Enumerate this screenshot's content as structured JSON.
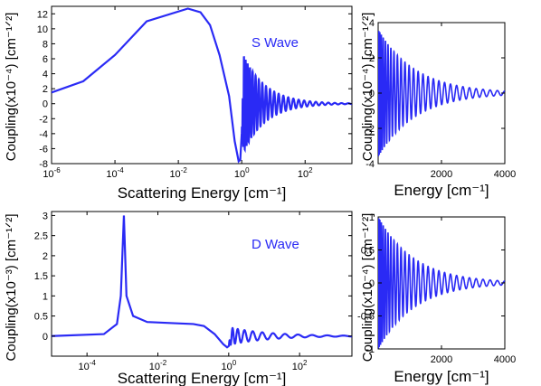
{
  "colors": {
    "series": "#2a2af5",
    "axis": "#000000",
    "background": "#ffffff"
  },
  "chart_data": [
    {
      "id": "s-wave-log",
      "type": "line",
      "annotation": "S Wave",
      "xlabel": "Scattering Energy [cm⁻¹]",
      "ylabel": "Coupling(x10⁻⁴) [cm⁻¹ᐟ²]",
      "xscale": "log",
      "xlim": [
        1e-06,
        3000
      ],
      "ylim": [
        -8,
        13
      ],
      "grid": false,
      "xticks": [
        {
          "value": 1e-06,
          "label": "10",
          "exp": "-6"
        },
        {
          "value": 0.0001,
          "label": "10",
          "exp": "-4"
        },
        {
          "value": 0.01,
          "label": "10",
          "exp": "-2"
        },
        {
          "value": 1,
          "label": "10",
          "exp": "0"
        },
        {
          "value": 100,
          "label": "10",
          "exp": "2"
        }
      ],
      "yticks": [
        -8,
        -6,
        -4,
        -2,
        0,
        2,
        4,
        6,
        8,
        10,
        12
      ],
      "series": [
        {
          "points": [
            [
              1e-06,
              1.5
            ],
            [
              1e-05,
              3.0
            ],
            [
              0.0001,
              6.5
            ],
            [
              0.001,
              11.0
            ],
            [
              0.02,
              12.7
            ],
            [
              0.05,
              12.2
            ],
            [
              0.1,
              10.5
            ],
            [
              0.2,
              6.5
            ],
            [
              0.4,
              1.0
            ],
            [
              0.6,
              -5.0
            ],
            [
              0.8,
              -7.7
            ],
            [
              0.9,
              -7.5
            ],
            [
              1.0,
              -4.0
            ]
          ],
          "oscillation": {
            "start": 1.0,
            "end": 3000,
            "amplitude_start": 7.0,
            "amplitude_end": 0.05,
            "cycles": 26
          }
        }
      ]
    },
    {
      "id": "s-wave-linear",
      "type": "line",
      "ylabel": "Coupling(x10⁻⁴) [cm⁻¹ᐟ²]",
      "xlabel": "Energy [cm⁻¹]",
      "xscale": "linear",
      "xlim": [
        0,
        4000
      ],
      "ylim": [
        -4,
        4
      ],
      "grid": false,
      "xticks": [
        2000,
        4000
      ],
      "yticks": [
        -4,
        -2,
        0,
        2,
        4
      ],
      "series": [
        {
          "oscillation": {
            "start": 5,
            "end": 4000,
            "amplitude_start": 3.6,
            "amplitude_end": 0.12,
            "cycles": 28
          }
        }
      ]
    },
    {
      "id": "d-wave-log",
      "type": "line",
      "annotation": "D Wave",
      "xlabel": "Scattering Energy [cm⁻¹]",
      "ylabel": "Coupling(x10⁻³) [cm⁻¹ᐟ²]",
      "xscale": "log",
      "xlim": [
        1e-05,
        3000
      ],
      "ylim": [
        -0.5,
        3.1
      ],
      "grid": false,
      "xticks": [
        {
          "value": 0.0001,
          "label": "10",
          "exp": "-4"
        },
        {
          "value": 0.01,
          "label": "10",
          "exp": "-2"
        },
        {
          "value": 1,
          "label": "10",
          "exp": "0"
        },
        {
          "value": 100,
          "label": "10",
          "exp": "2"
        }
      ],
      "yticks": [
        0,
        0.5,
        1,
        1.5,
        2,
        2.5,
        3
      ],
      "series": [
        {
          "points": [
            [
              1e-05,
              0.0
            ],
            [
              0.0003,
              0.05
            ],
            [
              0.0007,
              0.3
            ],
            [
              0.0009,
              1.0
            ],
            [
              0.0011,
              3.0
            ],
            [
              0.0013,
              1.0
            ],
            [
              0.002,
              0.5
            ],
            [
              0.005,
              0.35
            ],
            [
              0.03,
              0.32
            ],
            [
              0.1,
              0.3
            ],
            [
              0.2,
              0.25
            ],
            [
              0.4,
              0.05
            ],
            [
              0.7,
              -0.2
            ],
            [
              0.9,
              -0.28
            ],
            [
              1.0,
              -0.25
            ]
          ],
          "oscillation": {
            "start": 1.0,
            "end": 3000,
            "amplitude_start": 0.22,
            "amplitude_end": 0.01,
            "cycles": 12
          }
        }
      ]
    },
    {
      "id": "d-wave-linear",
      "type": "line",
      "ylabel": "Coupling(x10⁻⁴) [cm⁻¹ᐟ²]",
      "xlabel": "Energy [cm⁻¹]",
      "xscale": "linear",
      "xlim": [
        0,
        4000
      ],
      "ylim": [
        -1,
        1
      ],
      "grid": false,
      "xticks": [
        2000,
        4000
      ],
      "yticks": [
        -1,
        -0.5,
        0,
        0.5,
        1
      ],
      "series": [
        {
          "oscillation": {
            "start": 5,
            "end": 4000,
            "amplitude_start": 1.0,
            "amplitude_end": 0.03,
            "cycles": 28
          }
        }
      ]
    }
  ]
}
